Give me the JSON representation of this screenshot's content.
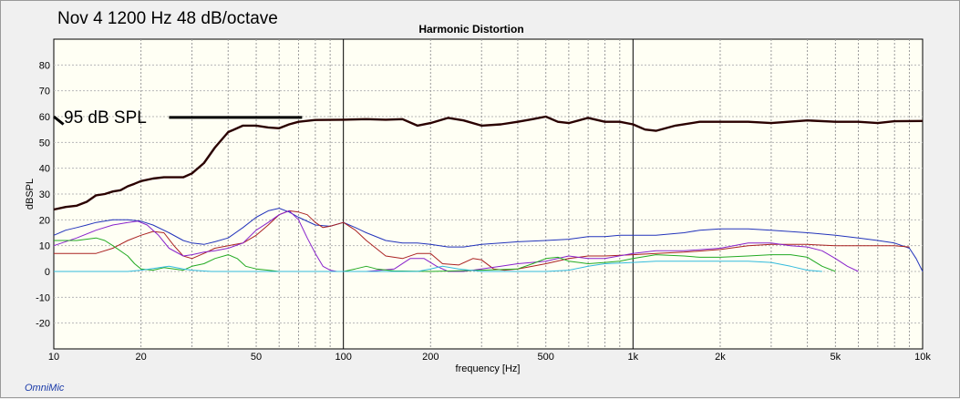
{
  "chart_data": {
    "type": "line",
    "title": "Harmonic Distortion",
    "note_title": "Nov 4  1200 Hz 48 dB/octave",
    "annotation": "95 dB SPL",
    "xlabel": "frequency [Hz]",
    "ylabel": "dBSPL",
    "x_scale": "log",
    "xlim": [
      10,
      10000
    ],
    "ylim": [
      -30,
      90
    ],
    "x_ticks": [
      {
        "v": 10,
        "label": "10"
      },
      {
        "v": 20,
        "label": "20"
      },
      {
        "v": 50,
        "label": "50"
      },
      {
        "v": 100,
        "label": "100"
      },
      {
        "v": 200,
        "label": "200"
      },
      {
        "v": 500,
        "label": "500"
      },
      {
        "v": 1000,
        "label": "1k"
      },
      {
        "v": 2000,
        "label": "2k"
      },
      {
        "v": 5000,
        "label": "5k"
      },
      {
        "v": 10000,
        "label": "10k"
      }
    ],
    "y_ticks": [
      -20,
      -10,
      0,
      10,
      20,
      30,
      40,
      50,
      60,
      70,
      80
    ],
    "grid": true,
    "annotation_marks": [
      {
        "kind": "slash",
        "x": [
          10,
          10.8
        ],
        "y": [
          60,
          57
        ]
      },
      {
        "kind": "underline",
        "x": [
          25,
          72
        ],
        "y": [
          59.7,
          59.7
        ]
      }
    ],
    "series": [
      {
        "color": "#2a0000",
        "width": 2.4,
        "points": [
          [
            10,
            24
          ],
          [
            11,
            25
          ],
          [
            12,
            25.5
          ],
          [
            13,
            27
          ],
          [
            14,
            29.5
          ],
          [
            15,
            30
          ],
          [
            16,
            31
          ],
          [
            17,
            31.5
          ],
          [
            18,
            33
          ],
          [
            19,
            34
          ],
          [
            20,
            35
          ],
          [
            22,
            36
          ],
          [
            24,
            36.5
          ],
          [
            26,
            36.5
          ],
          [
            28,
            36.5
          ],
          [
            30,
            38
          ],
          [
            33,
            42
          ],
          [
            36,
            48
          ],
          [
            40,
            54
          ],
          [
            45,
            56.5
          ],
          [
            50,
            56.5
          ],
          [
            55,
            55.8
          ],
          [
            60,
            55.5
          ],
          [
            65,
            57
          ],
          [
            70,
            58
          ],
          [
            80,
            58.7
          ],
          [
            100,
            58.8
          ],
          [
            120,
            59
          ],
          [
            140,
            58.8
          ],
          [
            160,
            59
          ],
          [
            180,
            56.5
          ],
          [
            200,
            57.5
          ],
          [
            230,
            59.5
          ],
          [
            260,
            58.5
          ],
          [
            300,
            56.5
          ],
          [
            350,
            57
          ],
          [
            400,
            58
          ],
          [
            450,
            59
          ],
          [
            500,
            60
          ],
          [
            550,
            58
          ],
          [
            600,
            57.5
          ],
          [
            700,
            59.5
          ],
          [
            800,
            58
          ],
          [
            900,
            58
          ],
          [
            1000,
            57
          ],
          [
            1100,
            55
          ],
          [
            1200,
            54.5
          ],
          [
            1400,
            56.5
          ],
          [
            1700,
            58
          ],
          [
            2000,
            58
          ],
          [
            2500,
            58
          ],
          [
            3000,
            57.5
          ],
          [
            4000,
            58.5
          ],
          [
            5000,
            58
          ],
          [
            6000,
            58
          ],
          [
            7000,
            57.5
          ],
          [
            8000,
            58.2
          ],
          [
            10000,
            58.3
          ]
        ]
      },
      {
        "color": "#2233bb",
        "width": 1,
        "points": [
          [
            10,
            14
          ],
          [
            11,
            16
          ],
          [
            12,
            17
          ],
          [
            13,
            18
          ],
          [
            14,
            19
          ],
          [
            16,
            20
          ],
          [
            18,
            20
          ],
          [
            20,
            19.5
          ],
          [
            22,
            18
          ],
          [
            25,
            15
          ],
          [
            28,
            12
          ],
          [
            30,
            11
          ],
          [
            33,
            10.5
          ],
          [
            36,
            11.5
          ],
          [
            40,
            13
          ],
          [
            45,
            17
          ],
          [
            50,
            21
          ],
          [
            55,
            23.5
          ],
          [
            60,
            24.5
          ],
          [
            65,
            23
          ],
          [
            70,
            21
          ],
          [
            80,
            18
          ],
          [
            90,
            17.5
          ],
          [
            100,
            19
          ],
          [
            110,
            17
          ],
          [
            120,
            15
          ],
          [
            140,
            12
          ],
          [
            160,
            11
          ],
          [
            180,
            11
          ],
          [
            200,
            10.5
          ],
          [
            230,
            9.5
          ],
          [
            260,
            9.5
          ],
          [
            300,
            10.5
          ],
          [
            350,
            11
          ],
          [
            400,
            11.5
          ],
          [
            500,
            12
          ],
          [
            600,
            12.5
          ],
          [
            700,
            13.5
          ],
          [
            800,
            13.5
          ],
          [
            900,
            14
          ],
          [
            1000,
            14
          ],
          [
            1200,
            14
          ],
          [
            1500,
            15
          ],
          [
            1700,
            16
          ],
          [
            2000,
            16.5
          ],
          [
            2500,
            16.5
          ],
          [
            3000,
            16
          ],
          [
            4000,
            15
          ],
          [
            5000,
            14
          ],
          [
            6000,
            13
          ],
          [
            7000,
            12
          ],
          [
            8000,
            11
          ],
          [
            9000,
            9
          ],
          [
            9500,
            5
          ],
          [
            10000,
            0
          ]
        ]
      },
      {
        "color": "#aa2222",
        "width": 1,
        "points": [
          [
            10,
            7
          ],
          [
            12,
            7
          ],
          [
            14,
            7
          ],
          [
            16,
            9
          ],
          [
            18,
            12
          ],
          [
            20,
            14
          ],
          [
            22,
            15.5
          ],
          [
            24,
            15
          ],
          [
            26,
            10
          ],
          [
            28,
            6
          ],
          [
            30,
            5
          ],
          [
            33,
            7
          ],
          [
            36,
            9
          ],
          [
            40,
            10
          ],
          [
            45,
            11
          ],
          [
            50,
            14
          ],
          [
            55,
            18
          ],
          [
            60,
            22
          ],
          [
            65,
            23.5
          ],
          [
            70,
            23
          ],
          [
            75,
            22
          ],
          [
            80,
            19
          ],
          [
            85,
            17
          ],
          [
            90,
            17.5
          ],
          [
            100,
            19
          ],
          [
            110,
            16
          ],
          [
            120,
            12
          ],
          [
            140,
            6
          ],
          [
            160,
            5
          ],
          [
            180,
            7
          ],
          [
            200,
            7
          ],
          [
            220,
            3
          ],
          [
            250,
            2.5
          ],
          [
            280,
            5
          ],
          [
            300,
            4.5
          ],
          [
            330,
            1
          ],
          [
            360,
            0.5
          ],
          [
            400,
            1
          ],
          [
            450,
            2
          ],
          [
            500,
            3
          ],
          [
            600,
            5
          ],
          [
            700,
            6
          ],
          [
            800,
            6
          ],
          [
            1000,
            6.5
          ],
          [
            1200,
            7
          ],
          [
            1500,
            7.5
          ],
          [
            2000,
            8.5
          ],
          [
            2500,
            10
          ],
          [
            3000,
            10.5
          ],
          [
            4000,
            10.5
          ],
          [
            5000,
            10
          ],
          [
            6000,
            10
          ],
          [
            7000,
            10
          ],
          [
            8000,
            10
          ],
          [
            9000,
            9.5
          ]
        ]
      },
      {
        "color": "#8822cc",
        "width": 1,
        "points": [
          [
            10,
            10
          ],
          [
            12,
            13
          ],
          [
            14,
            16
          ],
          [
            16,
            18
          ],
          [
            18,
            19
          ],
          [
            19.5,
            19.5
          ],
          [
            21,
            18
          ],
          [
            23,
            14
          ],
          [
            25,
            9
          ],
          [
            28,
            6
          ],
          [
            30,
            6.5
          ],
          [
            33,
            7.5
          ],
          [
            36,
            8
          ],
          [
            40,
            9
          ],
          [
            45,
            11
          ],
          [
            50,
            16
          ],
          [
            55,
            19
          ],
          [
            60,
            22
          ],
          [
            65,
            23.5
          ],
          [
            70,
            20
          ],
          [
            75,
            13
          ],
          [
            80,
            7
          ],
          [
            85,
            2
          ],
          [
            90,
            0.5
          ],
          [
            95,
            0
          ],
          [
            100,
            0
          ],
          [
            120,
            0
          ],
          [
            150,
            1
          ],
          [
            170,
            5
          ],
          [
            190,
            5
          ],
          [
            210,
            2
          ],
          [
            230,
            0
          ],
          [
            260,
            0
          ],
          [
            300,
            1
          ],
          [
            350,
            2
          ],
          [
            400,
            3
          ],
          [
            500,
            4
          ],
          [
            600,
            6
          ],
          [
            700,
            5
          ],
          [
            800,
            5
          ],
          [
            1000,
            7
          ],
          [
            1200,
            8
          ],
          [
            1500,
            8
          ],
          [
            2000,
            9
          ],
          [
            2500,
            11
          ],
          [
            3000,
            11
          ],
          [
            3500,
            10
          ],
          [
            4000,
            9.5
          ],
          [
            4500,
            8
          ],
          [
            5000,
            5
          ],
          [
            5500,
            2
          ],
          [
            6000,
            0
          ]
        ]
      },
      {
        "color": "#22aa22",
        "width": 1,
        "points": [
          [
            10,
            12
          ],
          [
            12,
            12
          ],
          [
            14,
            13
          ],
          [
            15,
            12
          ],
          [
            16,
            10
          ],
          [
            18,
            6
          ],
          [
            19,
            3
          ],
          [
            20,
            1
          ],
          [
            22,
            0.5
          ],
          [
            24,
            1.5
          ],
          [
            26,
            1
          ],
          [
            28,
            0.5
          ],
          [
            30,
            2
          ],
          [
            33,
            3
          ],
          [
            36,
            5
          ],
          [
            40,
            6.5
          ],
          [
            43,
            5
          ],
          [
            46,
            2
          ],
          [
            50,
            1
          ],
          [
            55,
            0.5
          ],
          [
            60,
            0
          ],
          [
            100,
            0
          ],
          [
            110,
            1
          ],
          [
            120,
            2
          ],
          [
            130,
            1
          ],
          [
            150,
            0.2
          ],
          [
            200,
            0
          ],
          [
            300,
            0.5
          ],
          [
            400,
            1
          ],
          [
            450,
            3
          ],
          [
            500,
            5
          ],
          [
            550,
            5.5
          ],
          [
            600,
            4
          ],
          [
            700,
            3
          ],
          [
            800,
            3.5
          ],
          [
            900,
            4
          ],
          [
            1000,
            5
          ],
          [
            1200,
            6.5
          ],
          [
            1500,
            6
          ],
          [
            1700,
            5.5
          ],
          [
            2000,
            5.5
          ],
          [
            2500,
            6
          ],
          [
            3000,
            6.5
          ],
          [
            3500,
            6.5
          ],
          [
            4000,
            5.5
          ],
          [
            4500,
            2
          ],
          [
            5000,
            0
          ]
        ]
      },
      {
        "color": "#33bbdd",
        "width": 1,
        "points": [
          [
            10,
            0
          ],
          [
            18,
            0
          ],
          [
            20,
            0.5
          ],
          [
            25,
            2
          ],
          [
            28,
            1
          ],
          [
            30,
            0.5
          ],
          [
            35,
            0
          ],
          [
            100,
            0
          ],
          [
            180,
            0
          ],
          [
            200,
            1
          ],
          [
            220,
            2
          ],
          [
            250,
            1
          ],
          [
            300,
            0
          ],
          [
            500,
            0
          ],
          [
            600,
            0.5
          ],
          [
            700,
            2
          ],
          [
            800,
            3
          ],
          [
            1000,
            3.5
          ],
          [
            1200,
            4
          ],
          [
            1500,
            4
          ],
          [
            2000,
            4
          ],
          [
            2500,
            4
          ],
          [
            3000,
            3.5
          ],
          [
            3500,
            2
          ],
          [
            4000,
            0.5
          ],
          [
            4500,
            0
          ]
        ]
      }
    ]
  },
  "branding": {
    "logo_text": "OmniMic"
  }
}
